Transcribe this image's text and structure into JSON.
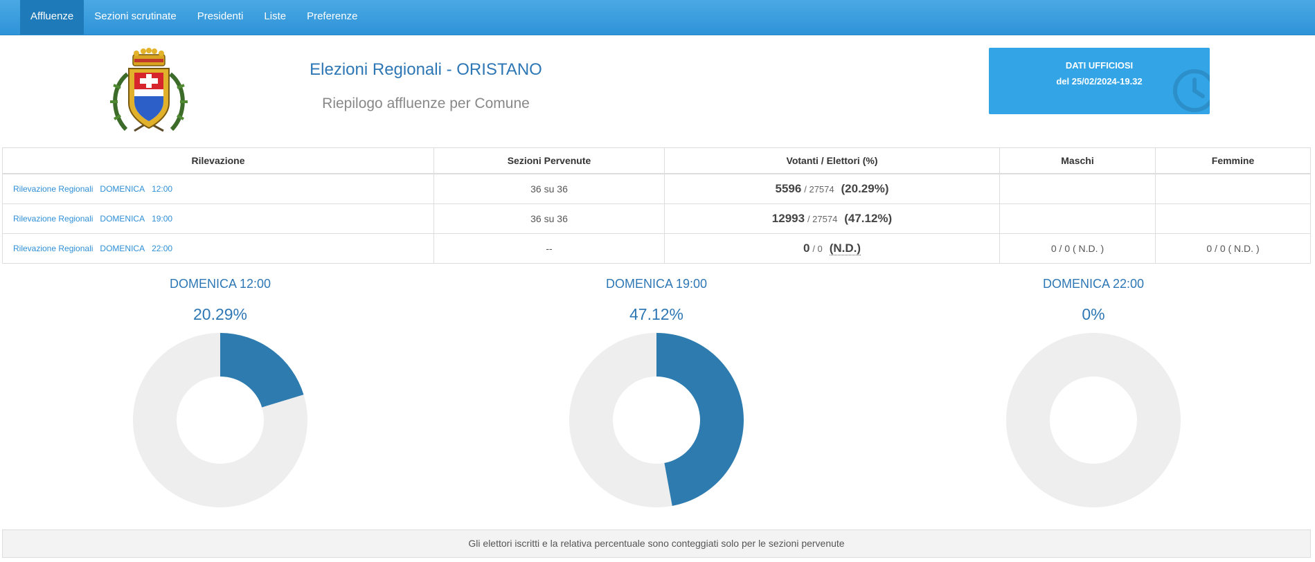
{
  "nav": {
    "items": [
      {
        "label": "Affluenze"
      },
      {
        "label": "Sezioni scrutinate"
      },
      {
        "label": "Presidenti"
      },
      {
        "label": "Liste"
      },
      {
        "label": "Preferenze"
      }
    ]
  },
  "header": {
    "title": "Elezioni Regionali - ORISTANO",
    "subtitle": "Riepilogo affluenze per Comune"
  },
  "status_box": {
    "line1": "DATI UFFICIOSI",
    "line2": "del 25/02/2024-19.32",
    "icon": "clock-icon",
    "color": "#33a5e7"
  },
  "table": {
    "headers": [
      "Rilevazione",
      "Sezioni Pervenute",
      "Votanti / Elettori (%)",
      "Maschi",
      "Femmine"
    ],
    "rows": [
      {
        "kind": "Rilevazione Regionali",
        "day": "DOMENICA",
        "time": "12:00",
        "sections": "36 su 36",
        "voters": "5596",
        "electors": "/ 27574",
        "pct": "(20.29%)",
        "male": "",
        "female": ""
      },
      {
        "kind": "Rilevazione Regionali",
        "day": "DOMENICA",
        "time": "19:00",
        "sections": "36 su 36",
        "voters": "12993",
        "electors": "/ 27574",
        "pct": "(47.12%)",
        "male": "",
        "female": ""
      },
      {
        "kind": "Rilevazione Regionali",
        "day": "DOMENICA",
        "time": "22:00",
        "sections": "--",
        "voters": "0",
        "electors": "/ 0",
        "pct": "(N.D.)",
        "male": "0 / 0 ( N.D. )",
        "female": "0 / 0 ( N.D. )"
      }
    ]
  },
  "chart_data": [
    {
      "type": "pie",
      "title": "DOMENICA  12:00",
      "label": "20.29%",
      "values": [
        20.29,
        79.71
      ],
      "colors": [
        "#2e7caf",
        "#eeeeee"
      ]
    },
    {
      "type": "pie",
      "title": "DOMENICA  19:00",
      "label": "47.12%",
      "values": [
        47.12,
        52.88
      ],
      "colors": [
        "#2e7caf",
        "#eeeeee"
      ]
    },
    {
      "type": "pie",
      "title": "DOMENICA  22:00",
      "label": "0%",
      "values": [
        0,
        100
      ],
      "colors": [
        "#2e7caf",
        "#eeeeee"
      ]
    }
  ],
  "footer": {
    "note": "Gli elettori iscritti e la relativa percentuale sono conteggiati solo per le sezioni pervenute"
  }
}
